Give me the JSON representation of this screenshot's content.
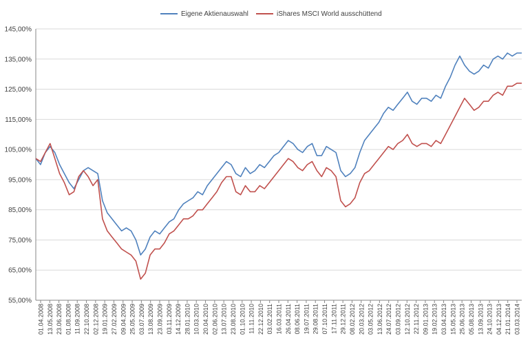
{
  "chart_data": {
    "type": "line",
    "ylim": [
      55,
      145
    ],
    "y_ticks": [
      55,
      65,
      75,
      85,
      95,
      105,
      115,
      125,
      135,
      145
    ],
    "y_tick_labels": [
      "55,00%",
      "65,00%",
      "75,00%",
      "85,00%",
      "95,00%",
      "105,00%",
      "115,00%",
      "125,00%",
      "135,00%",
      "145,00%"
    ],
    "x_tick_labels": [
      "01.04.2008",
      "13.05.2008",
      "23.06.2008",
      "01.08.2008",
      "11.09.2008",
      "22.10.2008",
      "02.12.2008",
      "19.01.2009",
      "27.02.2009",
      "09.04.2009",
      "25.05.2009",
      "03.07.2009",
      "13.08.2009",
      "23.09.2009",
      "03.11.2009",
      "14.12.2009",
      "28.01.2010",
      "10.03.2010",
      "20.04.2010",
      "02.06.2010",
      "13.07.2010",
      "23.08.2010",
      "01.10.2010",
      "11.11.2010",
      "22.12.2010",
      "03.02.2011",
      "16.03.2011",
      "26.04.2011",
      "08.06.2011",
      "19.07.2011",
      "29.08.2011",
      "07.10.2011",
      "17.11.2011",
      "29.12.2011",
      "08.02.2012",
      "20.03.2012",
      "03.05.2012",
      "13.06.2012",
      "24.07.2012",
      "03.09.2012",
      "12.10.2012",
      "22.11.2012",
      "09.01.2013",
      "19.02.2013",
      "03.04.2013",
      "15.05.2013",
      "25.06.2013",
      "05.08.2013",
      "13.09.2013",
      "24.10.2013",
      "04.12.2013",
      "21.01.2014",
      "03.03.2014"
    ],
    "legend_position": "top",
    "grid": true,
    "series": [
      {
        "name": "Eigene Aktienauswahl",
        "color": "#4f81bd",
        "values": [
          102,
          100,
          104,
          106,
          104,
          100,
          97,
          94,
          92,
          95,
          98,
          99,
          98,
          97,
          88,
          84,
          82,
          80,
          78,
          79,
          78,
          75,
          70,
          72,
          76,
          78,
          77,
          79,
          81,
          82,
          85,
          87,
          88,
          89,
          91,
          90,
          93,
          95,
          97,
          99,
          101,
          100,
          97,
          96,
          99,
          97,
          98,
          100,
          99,
          101,
          103,
          104,
          106,
          108,
          107,
          105,
          104,
          106,
          107,
          103,
          103,
          106,
          105,
          104,
          98,
          96,
          97,
          99,
          104,
          108,
          110,
          112,
          114,
          117,
          119,
          118,
          120,
          122,
          124,
          121,
          120,
          122,
          122,
          121,
          123,
          122,
          126,
          129,
          133,
          136,
          133,
          131,
          130,
          131,
          133,
          132,
          135,
          136,
          135,
          137,
          136,
          137,
          137
        ]
      },
      {
        "name": "iShares MSCI World ausschüttend",
        "color": "#c0504d",
        "values": [
          102,
          101,
          104,
          107,
          102,
          97,
          94,
          90,
          91,
          96,
          98,
          96,
          93,
          95,
          82,
          78,
          76,
          74,
          72,
          71,
          70,
          68,
          62,
          64,
          70,
          72,
          72,
          74,
          77,
          78,
          80,
          82,
          82,
          83,
          85,
          85,
          87,
          89,
          91,
          94,
          96,
          96,
          91,
          90,
          93,
          91,
          91,
          93,
          92,
          94,
          96,
          98,
          100,
          102,
          101,
          99,
          98,
          100,
          101,
          98,
          96,
          99,
          98,
          96,
          88,
          86,
          87,
          89,
          94,
          97,
          98,
          100,
          102,
          104,
          106,
          105,
          107,
          108,
          110,
          107,
          106,
          107,
          107,
          106,
          108,
          107,
          110,
          113,
          116,
          119,
          122,
          120,
          118,
          119,
          121,
          121,
          123,
          124,
          123,
          126,
          126,
          127,
          127
        ]
      }
    ]
  }
}
